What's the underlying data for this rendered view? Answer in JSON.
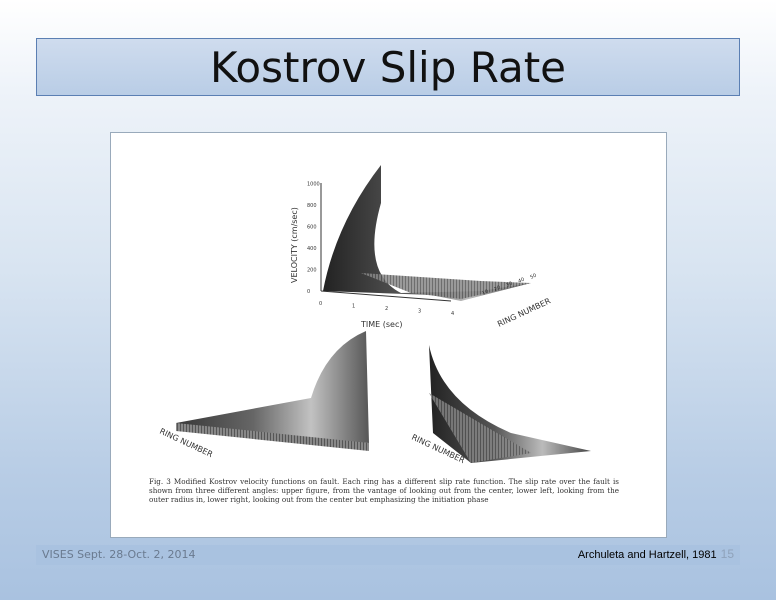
{
  "slide": {
    "title": "Kostrov Slip Rate",
    "footer_left": "VISES Sept. 28-Oct. 2, 2014",
    "citation": "Archuleta and Hartzell, 1981",
    "page_number": "15"
  },
  "figure": {
    "top_plot": {
      "y_axis_label": "VELOCITY (cm/sec)",
      "y_ticks": [
        "0",
        "200",
        "400",
        "600",
        "800",
        "1000"
      ],
      "x_axis_label": "TIME (sec)",
      "x_ticks": [
        "0",
        "1",
        "2",
        "3",
        "4"
      ],
      "depth_axis_label": "RING NUMBER",
      "depth_ticks": [
        "10",
        "20",
        "30",
        "40",
        "50"
      ]
    },
    "lower_left_label": "RING NUMBER",
    "lower_right_label": "RING NUMBER",
    "caption": "Fig. 3 Modified Kostrov velocity functions on fault. Each ring has a different slip rate function. The slip rate over the fault is shown from three different angles: upper figure, from the vantage of looking out from the center, lower left, looking from the outer radius in, lower right, looking out from the center but emphasizing the initiation phase"
  }
}
